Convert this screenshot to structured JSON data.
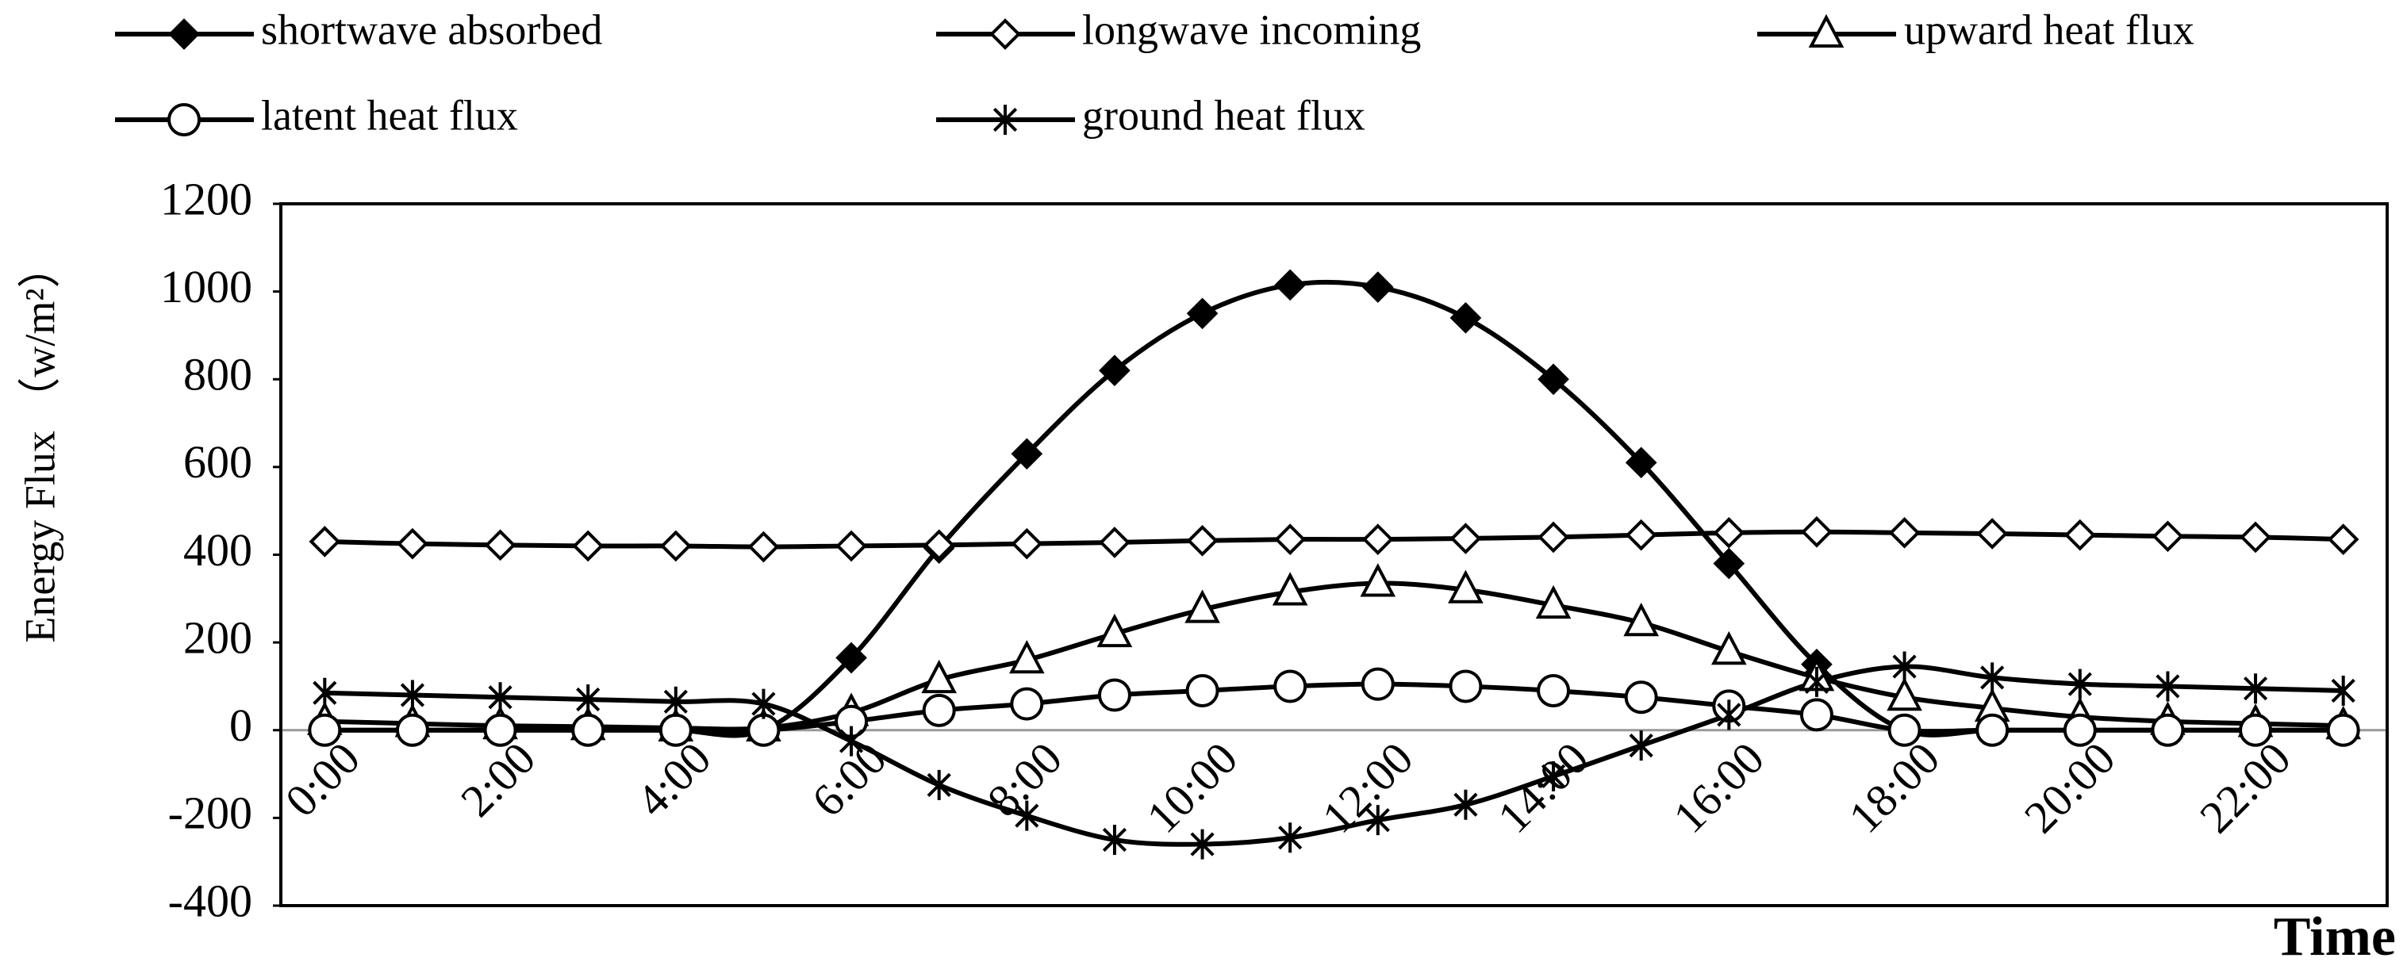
{
  "chart_data": {
    "type": "line",
    "ylabel": "Energy Flux （w/m²）",
    "xlabel": "Time",
    "categories": [
      "0:00",
      null,
      "2:00",
      null,
      "4:00",
      null,
      "6:00",
      null,
      "8:00",
      null,
      "10:00",
      null,
      "12:00",
      null,
      "14:00",
      null,
      "16:00",
      null,
      "18:00",
      null,
      "20:00",
      null,
      "22:00",
      null
    ],
    "ylim": [
      -400,
      1200
    ],
    "yticks": [
      -400,
      -200,
      0,
      200,
      400,
      600,
      800,
      1000,
      1200
    ],
    "grid": false,
    "legend": "top",
    "series": [
      {
        "name": "shortwave absorbed",
        "color": "#000000",
        "marker": "diamond-filled",
        "values": [
          0,
          0,
          0,
          0,
          0,
          0,
          165,
          415,
          630,
          820,
          950,
          1015,
          1010,
          940,
          800,
          610,
          380,
          150,
          0,
          0,
          0,
          0,
          0,
          0
        ]
      },
      {
        "name": "longwave incoming",
        "color": "#000000",
        "marker": "diamond-open",
        "values": [
          430,
          425,
          422,
          420,
          420,
          418,
          420,
          422,
          425,
          428,
          432,
          435,
          435,
          437,
          440,
          445,
          450,
          452,
          450,
          448,
          445,
          442,
          440,
          435
        ]
      },
      {
        "name": "upward heat flux",
        "color": "#000000",
        "marker": "triangle-open",
        "values": [
          20,
          15,
          10,
          8,
          5,
          5,
          40,
          115,
          160,
          220,
          275,
          315,
          335,
          320,
          285,
          245,
          180,
          120,
          75,
          50,
          30,
          20,
          15,
          10
        ]
      },
      {
        "name": "latent heat flux",
        "color": "#000000",
        "marker": "circle-open",
        "values": [
          0,
          0,
          0,
          0,
          0,
          0,
          20,
          45,
          60,
          80,
          90,
          100,
          105,
          100,
          90,
          75,
          55,
          35,
          0,
          0,
          0,
          0,
          0,
          0
        ]
      },
      {
        "name": "ground heat flux",
        "color": "#000000",
        "marker": "asterisk",
        "values": [
          85,
          80,
          75,
          70,
          65,
          60,
          -25,
          -125,
          -195,
          -250,
          -260,
          -245,
          -205,
          -170,
          -105,
          -35,
          35,
          110,
          145,
          120,
          105,
          100,
          95,
          90
        ]
      }
    ]
  }
}
